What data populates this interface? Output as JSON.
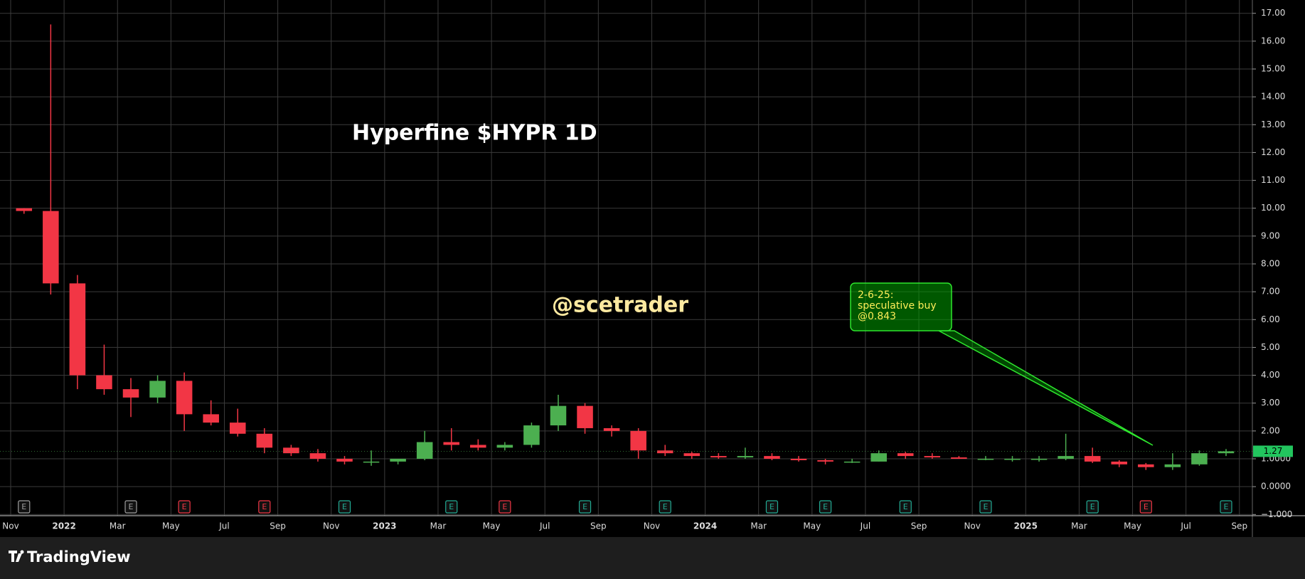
{
  "chart_data": {
    "type": "candlestick",
    "title": "Hyperfine $HYPR 1D",
    "watermark": "@scetrader",
    "up_color": "#4caf50",
    "down_color": "#f23645",
    "x": [
      "2021-11",
      "2021-12",
      "2022-01",
      "2022-02",
      "2022-03",
      "2022-04",
      "2022-05",
      "2022-06",
      "2022-07",
      "2022-08",
      "2022-09",
      "2022-10",
      "2022-11",
      "2022-12",
      "2023-01",
      "2023-02",
      "2023-03",
      "2023-04",
      "2023-05",
      "2023-06",
      "2023-07",
      "2023-08",
      "2023-09",
      "2023-10",
      "2023-11",
      "2023-12",
      "2024-01",
      "2024-02",
      "2024-03",
      "2024-04",
      "2024-05",
      "2024-06",
      "2024-07",
      "2024-08",
      "2024-09",
      "2024-10",
      "2024-11",
      "2024-12",
      "2025-01",
      "2025-02",
      "2025-03",
      "2025-04",
      "2025-05",
      "2025-06",
      "2025-07",
      "2025-08"
    ],
    "open": [
      10,
      9.9,
      7.3,
      4.0,
      3.5,
      3.2,
      3.8,
      2.6,
      2.3,
      1.9,
      1.4,
      1.2,
      1.0,
      0.9,
      0.9,
      1.0,
      1.6,
      1.5,
      1.4,
      1.5,
      2.2,
      2.9,
      2.1,
      2.0,
      1.3,
      1.2,
      1.1,
      1.05,
      1.1,
      1.0,
      0.95,
      0.9,
      0.9,
      1.2,
      1.1,
      1.05,
      1.0,
      1.0,
      1.0,
      1.0,
      1.1,
      0.9,
      0.8,
      0.7,
      0.8,
      1.2
    ],
    "high": [
      10,
      16.6,
      7.6,
      5.1,
      3.9,
      4.0,
      4.1,
      3.1,
      2.8,
      2.1,
      1.5,
      1.35,
      1.1,
      1.3,
      1.0,
      2.0,
      2.1,
      1.7,
      1.6,
      2.3,
      3.3,
      3.0,
      2.2,
      2.1,
      1.5,
      1.25,
      1.2,
      1.4,
      1.2,
      1.1,
      1.0,
      1.0,
      1.3,
      1.25,
      1.2,
      1.1,
      1.1,
      1.1,
      1.1,
      1.9,
      1.4,
      0.95,
      0.85,
      1.2,
      1.3,
      1.35
    ],
    "low": [
      9.8,
      6.9,
      3.5,
      3.3,
      2.5,
      3.0,
      2.0,
      2.2,
      1.8,
      1.2,
      1.1,
      0.9,
      0.8,
      0.75,
      0.8,
      0.95,
      1.3,
      1.3,
      1.3,
      1.4,
      2.0,
      1.9,
      1.8,
      1.0,
      1.1,
      1.0,
      1.0,
      1.0,
      0.95,
      0.9,
      0.8,
      0.85,
      0.9,
      1.0,
      1.0,
      1.0,
      0.95,
      0.9,
      0.9,
      0.95,
      0.85,
      0.7,
      0.6,
      0.6,
      0.75,
      1.1
    ],
    "close": [
      9.9,
      7.3,
      4.0,
      3.5,
      3.2,
      3.8,
      2.6,
      2.3,
      1.9,
      1.4,
      1.2,
      1.0,
      0.9,
      0.9,
      1.0,
      1.6,
      1.5,
      1.4,
      1.5,
      2.2,
      2.9,
      2.1,
      2.0,
      1.3,
      1.2,
      1.1,
      1.05,
      1.1,
      1.0,
      0.95,
      0.9,
      0.9,
      1.2,
      1.1,
      1.05,
      1.0,
      1.0,
      1.0,
      1.0,
      1.1,
      0.9,
      0.8,
      0.7,
      0.8,
      1.2,
      1.27
    ],
    "last_price": 1.27,
    "ylim": [
      -1,
      17
    ],
    "yticks": [
      {
        "value": 17,
        "label": "17.00"
      },
      {
        "value": 16,
        "label": "16.00"
      },
      {
        "value": 15,
        "label": "15.00"
      },
      {
        "value": 14,
        "label": "14.00"
      },
      {
        "value": 13,
        "label": "13.00"
      },
      {
        "value": 12,
        "label": "12.00"
      },
      {
        "value": 11,
        "label": "11.00"
      },
      {
        "value": 10,
        "label": "10.00"
      },
      {
        "value": 9,
        "label": "9.00"
      },
      {
        "value": 8,
        "label": "8.00"
      },
      {
        "value": 7,
        "label": "7.00"
      },
      {
        "value": 6,
        "label": "6.00"
      },
      {
        "value": 5,
        "label": "5.00"
      },
      {
        "value": 4,
        "label": "4.00"
      },
      {
        "value": 3,
        "label": "3.00"
      },
      {
        "value": 2,
        "label": "2.00"
      },
      {
        "value": 1,
        "label": "1.0000"
      },
      {
        "value": 0,
        "label": "0.0000"
      },
      {
        "value": -1,
        "label": "−1.000"
      }
    ],
    "xticks": [
      {
        "value": "2021-11",
        "label": "Nov"
      },
      {
        "value": "2022-01",
        "label": "2022"
      },
      {
        "value": "2022-03",
        "label": "Mar"
      },
      {
        "value": "2022-05",
        "label": "May"
      },
      {
        "value": "2022-07",
        "label": "Jul"
      },
      {
        "value": "2022-09",
        "label": "Sep"
      },
      {
        "value": "2022-11",
        "label": "Nov"
      },
      {
        "value": "2023-01",
        "label": "2023"
      },
      {
        "value": "2023-03",
        "label": "Mar"
      },
      {
        "value": "2023-05",
        "label": "May"
      },
      {
        "value": "2023-07",
        "label": "Jul"
      },
      {
        "value": "2023-09",
        "label": "Sep"
      },
      {
        "value": "2023-11",
        "label": "Nov"
      },
      {
        "value": "2024-01",
        "label": "2024"
      },
      {
        "value": "2024-03",
        "label": "Mar"
      },
      {
        "value": "2024-05",
        "label": "May"
      },
      {
        "value": "2024-07",
        "label": "Jul"
      },
      {
        "value": "2024-09",
        "label": "Sep"
      },
      {
        "value": "2024-11",
        "label": "Nov"
      },
      {
        "value": "2025-01",
        "label": "2025"
      },
      {
        "value": "2025-03",
        "label": "Mar"
      },
      {
        "value": "2025-05",
        "label": "May"
      },
      {
        "value": "2025-07",
        "label": "Jul"
      },
      {
        "value": "2025-09",
        "label": "Sep"
      }
    ],
    "grid": true,
    "earnings": [
      {
        "x": "2021-11",
        "label": "E",
        "color": "#9e9e9e"
      },
      {
        "x": "2022-03",
        "label": "E",
        "color": "#9e9e9e"
      },
      {
        "x": "2022-05",
        "label": "E",
        "color": "#f23645"
      },
      {
        "x": "2022-08",
        "label": "E",
        "color": "#f23645"
      },
      {
        "x": "2022-11",
        "label": "E",
        "color": "#22ab94"
      },
      {
        "x": "2023-03",
        "label": "E",
        "color": "#22ab94"
      },
      {
        "x": "2023-05",
        "label": "E",
        "color": "#f23645"
      },
      {
        "x": "2023-08",
        "label": "E",
        "color": "#22ab94"
      },
      {
        "x": "2023-11",
        "label": "E",
        "color": "#22ab94"
      },
      {
        "x": "2024-03",
        "label": "E",
        "color": "#22ab94"
      },
      {
        "x": "2024-05",
        "label": "E",
        "color": "#22ab94"
      },
      {
        "x": "2024-08",
        "label": "E",
        "color": "#22ab94"
      },
      {
        "x": "2024-11",
        "label": "E",
        "color": "#22ab94"
      },
      {
        "x": "2025-03",
        "label": "E",
        "color": "#22ab94"
      },
      {
        "x": "2025-05",
        "label": "E",
        "color": "#f23645"
      },
      {
        "x": "2025-08",
        "label": "E",
        "color": "#22ab94"
      }
    ],
    "annotation": {
      "lines": [
        "2-6-25:",
        "speculative buy",
        "@0.843"
      ]
    }
  },
  "footer": {
    "brand": "TradingView"
  }
}
